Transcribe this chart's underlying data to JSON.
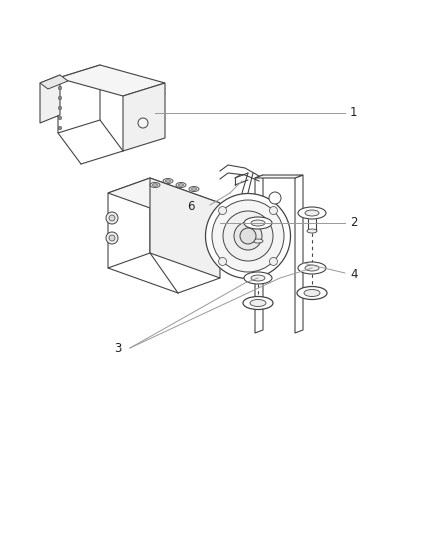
{
  "background_color": "#ffffff",
  "fig_width": 4.38,
  "fig_height": 5.33,
  "dpi": 100,
  "lc": "#444444",
  "cc": "#999999",
  "label_color": "#222222",
  "label_fontsize": 8.5
}
